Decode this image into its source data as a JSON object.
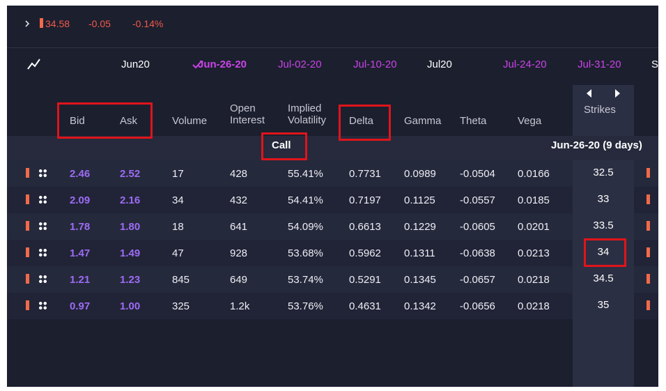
{
  "header": {
    "price": "34.58",
    "change": "-0.05",
    "change_pct": "-0.14%"
  },
  "expirations": [
    "Jun20",
    "Jun-26-20",
    "Jul-02-20",
    "Jul-10-20",
    "Jul20",
    "Jul-24-20",
    "Jul-31-20",
    "S"
  ],
  "columns": [
    "Bid",
    "Ask",
    "Volume",
    "Open Interest",
    "Implied Volatility",
    "Delta",
    "Gamma",
    "Theta",
    "Vega"
  ],
  "strikes_header": "Strikes",
  "section": "Call",
  "expiry_label": "Jun-26-20 (9 days)",
  "rows": [
    {
      "cells": [
        "2.46",
        "2.52",
        "17",
        "428",
        "55.41%",
        "0.7731",
        "0.0989",
        "-0.0504",
        "0.0166"
      ],
      "strike": "32.5"
    },
    {
      "cells": [
        "2.09",
        "2.16",
        "34",
        "432",
        "54.41%",
        "0.7197",
        "0.1125",
        "-0.0557",
        "0.0185"
      ],
      "strike": "33"
    },
    {
      "cells": [
        "1.78",
        "1.80",
        "18",
        "641",
        "54.09%",
        "0.6613",
        "0.1229",
        "-0.0605",
        "0.0201"
      ],
      "strike": "33.5"
    },
    {
      "cells": [
        "1.47",
        "1.49",
        "47",
        "928",
        "53.68%",
        "0.5962",
        "0.1311",
        "-0.0638",
        "0.0213"
      ],
      "strike": "34"
    },
    {
      "cells": [
        "1.21",
        "1.23",
        "845",
        "649",
        "53.74%",
        "0.5291",
        "0.1345",
        "-0.0657",
        "0.0218"
      ],
      "strike": "34.5"
    },
    {
      "cells": [
        "0.97",
        "1.00",
        "325",
        "1.2k",
        "53.76%",
        "0.4631",
        "0.1342",
        "-0.0656",
        "0.0218"
      ],
      "strike": "35"
    }
  ]
}
